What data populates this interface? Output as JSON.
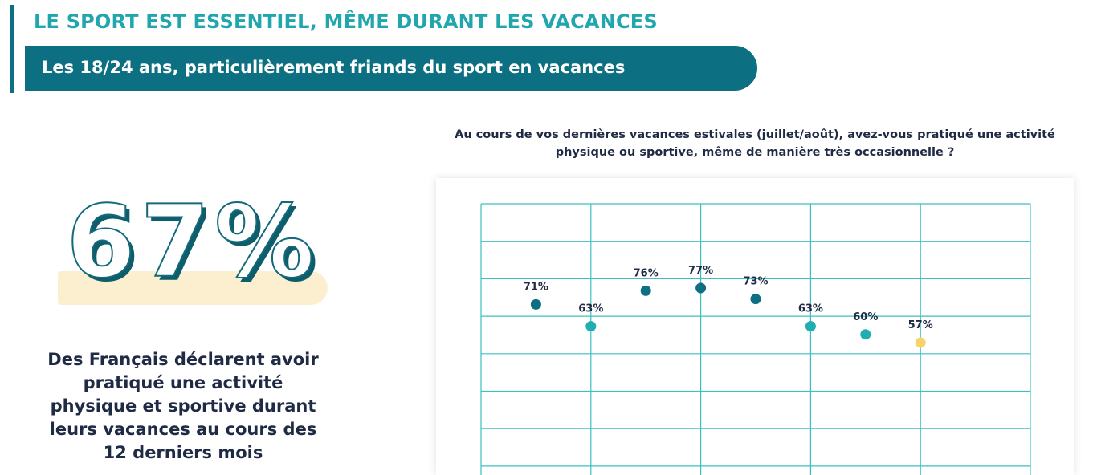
{
  "header": {
    "title": "LE SPORT EST ESSENTIEL, MÊME DURANT LES VACANCES",
    "subtitle": "Les 18/24 ans, particulièrement friands du sport en vacances"
  },
  "highlight": {
    "value": "67%",
    "text": "Des Français déclarent avoir pratiqué une activité physique et sportive durant leurs vacances au cours des 12 derniers mois"
  },
  "chart_data": {
    "type": "scatter",
    "title": "Au cours de vos dernières vacances estivales (juillet/août), avez-vous pratiqué une activité physique ou sportive, même de manière très occasionnelle ?",
    "xlabel": "",
    "ylabel": "",
    "ylim": [
      0,
      100
    ],
    "grid": true,
    "points": [
      {
        "value": 71,
        "label": "71%",
        "color": "#0d7082"
      },
      {
        "value": 63,
        "label": "63%",
        "color": "#21aeb2"
      },
      {
        "value": 76,
        "label": "76%",
        "color": "#0d7082"
      },
      {
        "value": 77,
        "label": "77%",
        "color": "#0d7082"
      },
      {
        "value": 73,
        "label": "73%",
        "color": "#0d7082"
      },
      {
        "value": 63,
        "label": "63%",
        "color": "#21aeb2"
      },
      {
        "value": 60,
        "label": "60%",
        "color": "#21aeb2"
      },
      {
        "value": 57,
        "label": "57%",
        "color": "#f7d36a"
      }
    ]
  },
  "colors": {
    "primary_dark": "#0d7082",
    "primary_light": "#21a6ae",
    "grid": "#3cc0bf",
    "highlight_bg": "#fcefcf",
    "text_dark": "#1f2a44"
  }
}
